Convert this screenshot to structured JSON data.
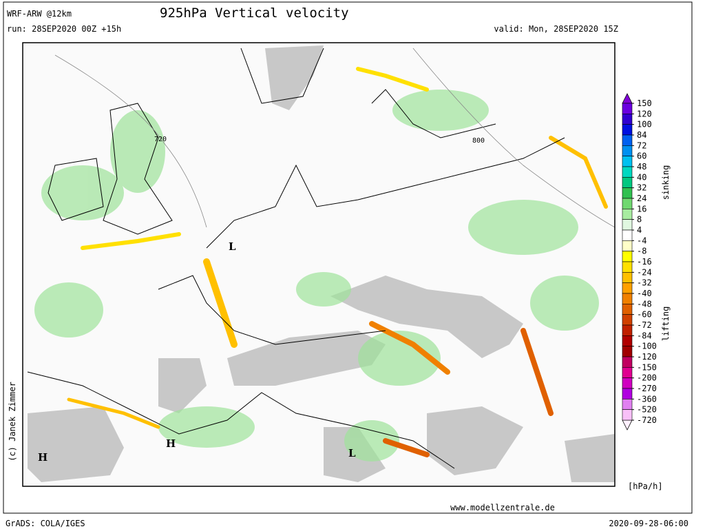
{
  "header": {
    "model": "WRF-ARW @12km",
    "title": "925hPa Vertical velocity",
    "run": "run: 28SEP2020 00Z +15h",
    "valid": "valid: Mon, 28SEP2020 15Z"
  },
  "map": {
    "labels": [
      "720",
      "800",
      "H",
      "H",
      "L",
      "L"
    ]
  },
  "legend": {
    "levels": [
      150,
      120,
      100,
      84,
      72,
      60,
      48,
      40,
      32,
      24,
      16,
      8,
      4,
      -4,
      -8,
      -16,
      -24,
      -32,
      -40,
      -48,
      -60,
      -72,
      -84,
      -100,
      -120,
      -150,
      -200,
      -270,
      -360,
      -520,
      -720
    ],
    "colors": [
      "#6a00e0",
      "#3000d0",
      "#0010e0",
      "#0060f0",
      "#0090f0",
      "#00c0f0",
      "#00d8c0",
      "#00c880",
      "#30c050",
      "#70d870",
      "#a8eca0",
      "#e0f8e0",
      "#ffffff",
      "#ffffc8",
      "#ffff00",
      "#ffe000",
      "#ffc000",
      "#ffa000",
      "#f08000",
      "#e06000",
      "#d04000",
      "#c02000",
      "#b00000",
      "#a00000",
      "#c00060",
      "#e00090",
      "#d000c0",
      "#b000e0",
      "#e080f0",
      "#f8c0f8"
    ],
    "over_color": "#8000d8",
    "under_color": "#fff0ff",
    "upper_label": "sinking",
    "lower_label": "lifting",
    "unit": "[hPa/h]"
  },
  "footer": {
    "credit": "(c) Janek Zimmer",
    "site": "www.modellzentrale.de",
    "software": "GrADS: COLA/IGES",
    "timestamp": "2020-09-28-06:00"
  }
}
